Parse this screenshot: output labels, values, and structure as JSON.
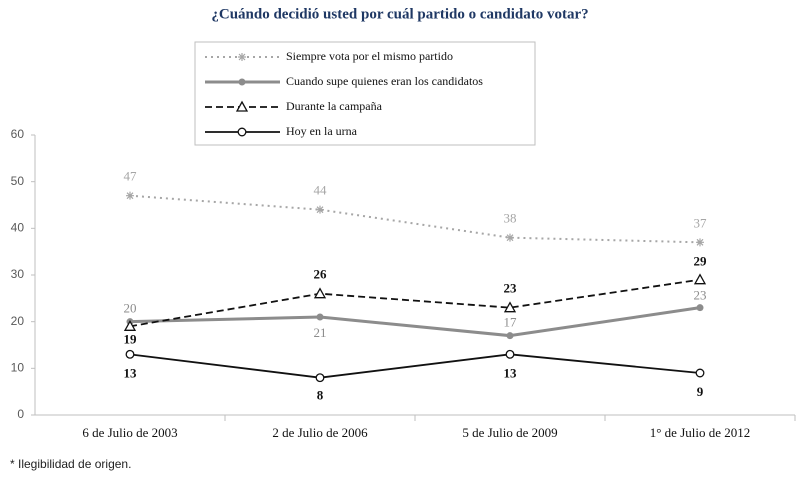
{
  "chart_data": {
    "type": "line",
    "title": "¿Cuándo decidió usted por cuál partido  o candidato votar?",
    "categories": [
      "6 de Julio de 2003",
      "2 de Julio de 2006",
      "5 de Julio de 2009",
      "1° de Julio de 2012"
    ],
    "series": [
      {
        "name": "Siempre vota por el mismo partido",
        "color": "#a6a6a6",
        "values": [
          47,
          44,
          38,
          37
        ]
      },
      {
        "name": "Cuando supe quienes eran los candidatos",
        "color": "#8c8c8c",
        "values": [
          20,
          21,
          17,
          23
        ]
      },
      {
        "name": "Durante la campaña",
        "color": "#111111",
        "values": [
          19,
          26,
          23,
          29
        ]
      },
      {
        "name": "Hoy en la urna",
        "color": "#111111",
        "values": [
          13,
          8,
          13,
          9
        ]
      }
    ],
    "ylim": [
      0,
      60
    ],
    "yticks": [
      0,
      10,
      20,
      30,
      40,
      50,
      60
    ],
    "grid": false,
    "legend": "top",
    "footnote": "* Ilegibilidad de origen."
  }
}
